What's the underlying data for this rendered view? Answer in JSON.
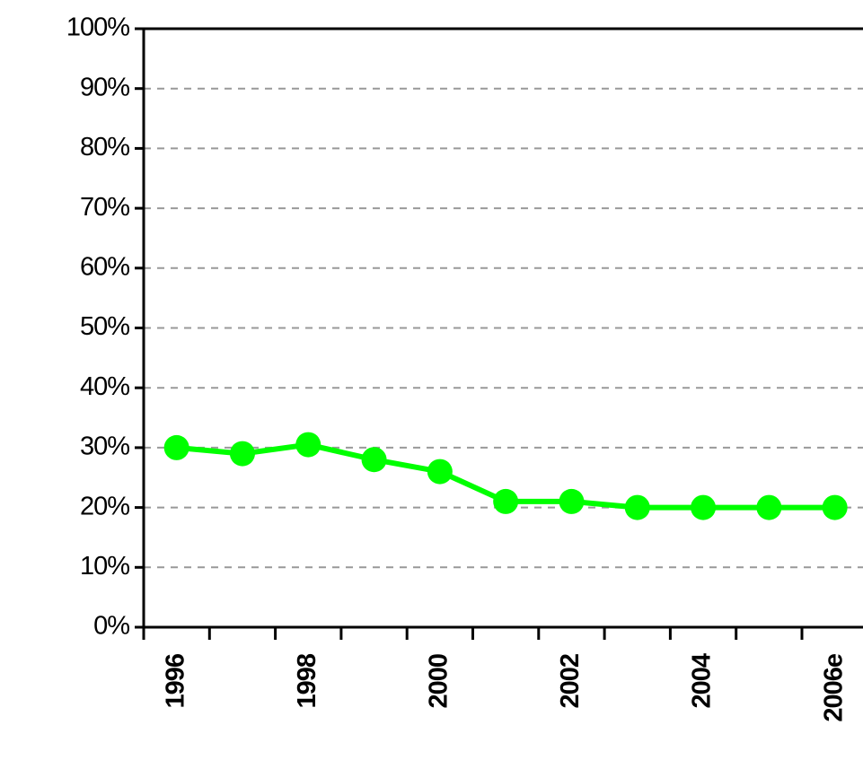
{
  "chart_data": {
    "type": "line",
    "categories": [
      "1996",
      null,
      "1998",
      null,
      "2000",
      null,
      "2002",
      null,
      "2004",
      null,
      "2006e"
    ],
    "values": [
      30,
      29,
      30.5,
      28,
      26,
      21,
      21,
      20,
      20,
      20,
      20
    ],
    "color": "#00ff00",
    "ylim": [
      0,
      100
    ],
    "yticks": [
      {
        "value": 0,
        "label": "0%"
      },
      {
        "value": 10,
        "label": "10%"
      },
      {
        "value": 20,
        "label": "20%"
      },
      {
        "value": 30,
        "label": "30%"
      },
      {
        "value": 40,
        "label": "40%"
      },
      {
        "value": 50,
        "label": "50%"
      },
      {
        "value": 60,
        "label": "60%"
      },
      {
        "value": 70,
        "label": "70%"
      },
      {
        "value": 80,
        "label": "80%"
      },
      {
        "value": 90,
        "label": "90%"
      },
      {
        "value": 100,
        "label": "100%"
      }
    ],
    "grid": true
  }
}
